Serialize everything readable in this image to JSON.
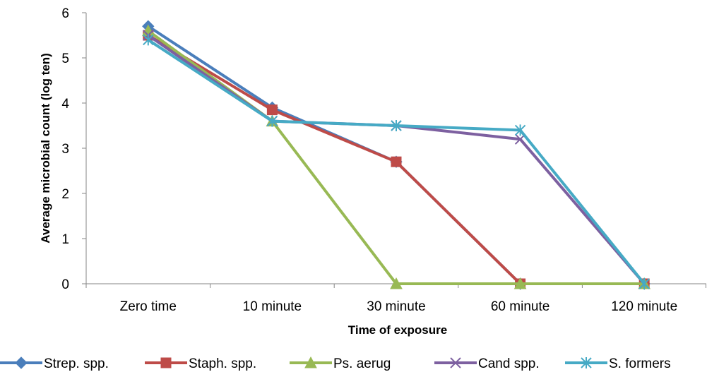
{
  "chart_data": {
    "type": "line",
    "title": "",
    "xlabel": "Time  of exposure",
    "ylabel": "Average microbial count (log ten)",
    "categories": [
      "Zero time",
      "10 minute",
      "30 minute",
      "60 minute",
      "120 minute"
    ],
    "ylim": [
      0,
      6
    ],
    "yticks": [
      "0",
      "1",
      "2",
      "3",
      "4",
      "5",
      "6"
    ],
    "grid": false,
    "legend_position": "bottom",
    "series": [
      {
        "name": "Strep. spp.",
        "color": "#4a7ebb",
        "marker": "diamond",
        "values": [
          5.7,
          3.9,
          2.7,
          0,
          0
        ]
      },
      {
        "name": "Staph. spp.",
        "color": "#be4b48",
        "marker": "square",
        "values": [
          5.5,
          3.85,
          2.7,
          0,
          0
        ]
      },
      {
        "name": "Ps. aerug",
        "color": "#98b954",
        "marker": "triangle",
        "values": [
          5.6,
          3.6,
          0,
          0,
          0
        ]
      },
      {
        "name": "Cand spp.",
        "color": "#7d60a0",
        "marker": "x",
        "values": [
          5.5,
          3.6,
          3.5,
          3.2,
          0
        ]
      },
      {
        "name": "S. formers",
        "color": "#46aac5",
        "marker": "star",
        "values": [
          5.4,
          3.6,
          3.5,
          3.4,
          0
        ]
      }
    ]
  }
}
